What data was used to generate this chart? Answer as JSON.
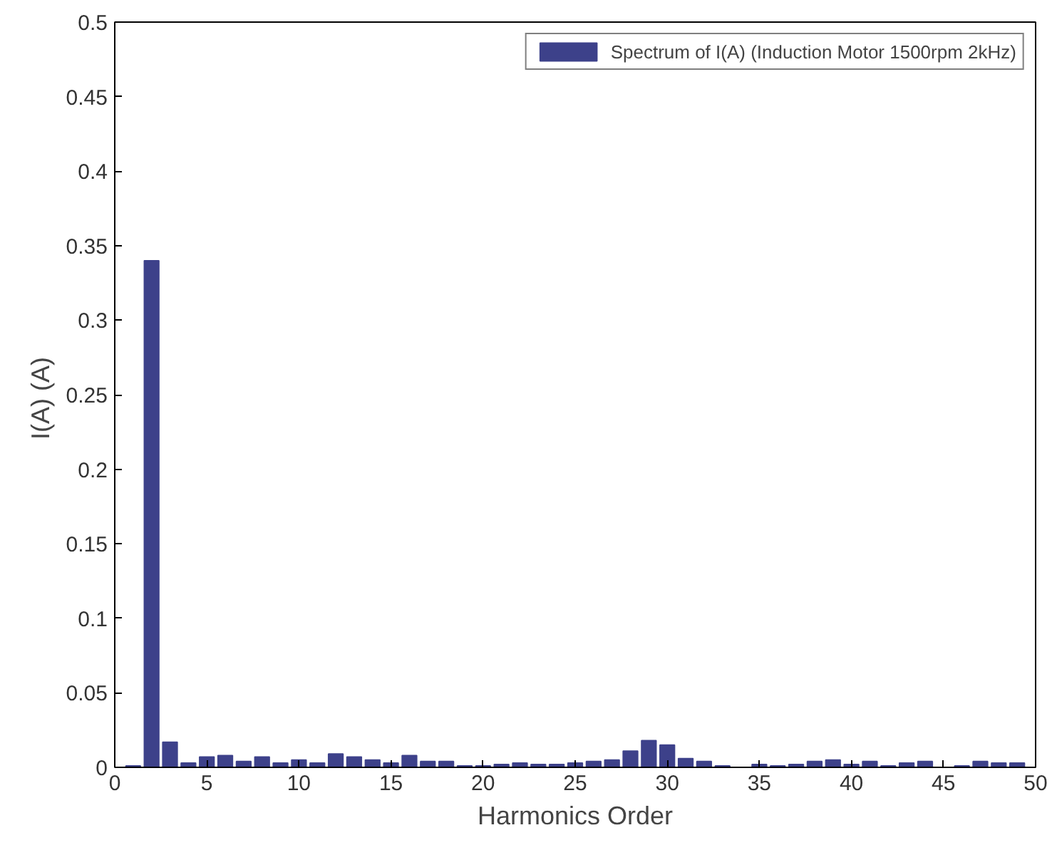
{
  "chart_data": {
    "type": "bar",
    "xlabel": "Harmonics Order",
    "ylabel": "I(A)  (A)",
    "x": [
      1,
      2,
      3,
      4,
      5,
      6,
      7,
      8,
      9,
      10,
      11,
      12,
      13,
      14,
      15,
      16,
      17,
      18,
      19,
      20,
      21,
      22,
      23,
      24,
      25,
      26,
      27,
      28,
      29,
      30,
      31,
      32,
      33,
      34,
      35,
      36,
      37,
      38,
      39,
      40,
      41,
      42,
      43,
      44,
      45,
      46,
      47,
      48,
      49
    ],
    "series": [
      {
        "name": "Spectrum of I(A) (Induction Motor 1500rpm 2kHz)",
        "color": "#3d418a",
        "values": [
          0.001,
          0.34,
          0.017,
          0.003,
          0.007,
          0.008,
          0.004,
          0.007,
          0.003,
          0.005,
          0.003,
          0.009,
          0.007,
          0.005,
          0.003,
          0.008,
          0.004,
          0.004,
          0.001,
          0.001,
          0.002,
          0.003,
          0.002,
          0.002,
          0.003,
          0.004,
          0.005,
          0.011,
          0.018,
          0.015,
          0.006,
          0.004,
          0.001,
          0.0,
          0.002,
          0.001,
          0.002,
          0.004,
          0.005,
          0.002,
          0.004,
          0.001,
          0.003,
          0.004,
          0.0,
          0.001,
          0.004,
          0.003,
          0.003
        ]
      }
    ],
    "xlim": [
      0,
      50
    ],
    "ylim": [
      0,
      0.5
    ],
    "xticks": [
      0,
      5,
      10,
      15,
      20,
      25,
      30,
      35,
      40,
      45,
      50
    ],
    "yticks": [
      0,
      0.05,
      0.1,
      0.15,
      0.2,
      0.25,
      0.3,
      0.35,
      0.4,
      0.45,
      0.5
    ],
    "grid": false,
    "legend": "top right"
  }
}
